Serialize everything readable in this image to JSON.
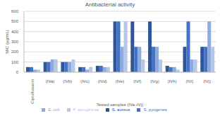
{
  "chart_data": {
    "type": "bar",
    "title": "Antibacterial activity",
    "x_label": "Tested samples (IVa–IVj)",
    "y_label": "MIC (µg/mL)",
    "categories": [
      "Ciprofloxacin",
      "(IVa)",
      "(IVb)",
      "(IVc)",
      "(IVd)",
      "(IVe)",
      "(IVf)",
      "(IVg)",
      "(IVh)",
      "(IVi)",
      "(IVj)"
    ],
    "series": [
      {
        "name": "S. aureus",
        "color": "#2f5597",
        "values": [
          50,
          100,
          100,
          50,
          62.5,
          500,
          500,
          500,
          62.5,
          250,
          250
        ]
      },
      {
        "name": "S. pyogenes",
        "color": "#4472c4",
        "values": [
          50,
          100,
          100,
          50,
          62.5,
          500,
          250,
          250,
          50,
          500,
          250
        ]
      },
      {
        "name": "E. coli",
        "color": "#8faadc",
        "values": [
          25,
          125,
          100,
          25,
          50,
          250,
          250,
          250,
          50,
          125,
          500
        ]
      },
      {
        "name": "P. aeruginosa",
        "color": "#b4c7e7",
        "values": [
          25,
          125,
          125,
          50,
          50,
          500,
          125,
          125,
          25,
          125,
          250
        ]
      }
    ],
    "ylim": [
      0,
      600
    ],
    "yticks": [
      0,
      100,
      200,
      300,
      400,
      500,
      600
    ],
    "grid": true,
    "legend": "bottom"
  }
}
